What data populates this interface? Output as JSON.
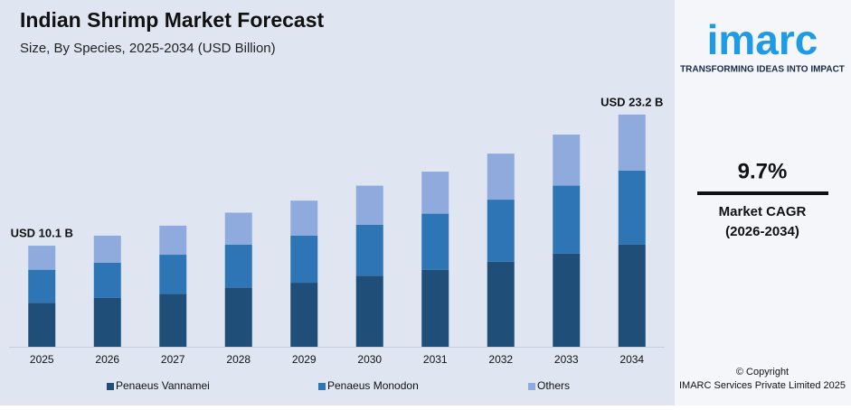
{
  "chart_data": {
    "type": "stacked-bar",
    "title": "Indian Shrimp Market Forecast",
    "subtitle": "Size, By Species, 2025-2034 (USD Billion)",
    "categories": [
      "2025",
      "2026",
      "2027",
      "2028",
      "2029",
      "2030",
      "2031",
      "2032",
      "2033",
      "2034"
    ],
    "series": [
      {
        "name": "Penaeus Vannamei",
        "color": "#1f4e79",
        "values": [
          4.4,
          4.9,
          5.3,
          5.9,
          6.4,
          7.1,
          7.7,
          8.5,
          9.3,
          10.2
        ]
      },
      {
        "name": "Penaeus Monodon",
        "color": "#2e75b6",
        "values": [
          3.3,
          3.5,
          3.9,
          4.3,
          4.7,
          5.1,
          5.6,
          6.2,
          6.8,
          7.4
        ]
      },
      {
        "name": "Others",
        "color": "#8faadc",
        "values": [
          2.4,
          2.7,
          2.9,
          3.2,
          3.5,
          3.9,
          4.2,
          4.6,
          5.1,
          5.6
        ]
      }
    ],
    "ylim": [
      0,
      24
    ],
    "annotations": [
      {
        "text": "USD 10.1 B",
        "category": 0
      },
      {
        "text": "USD 23.2 B",
        "category": 9
      }
    ]
  },
  "sidebar": {
    "logo": "imarc",
    "tagline": "TRANSFORMING IDEAS INTO IMPACT",
    "cagr": "9.7%",
    "cagr_label": "Market CAGR",
    "cagr_period": "(2026-2034)",
    "copyright": "© Copyright",
    "company": "IMARC Services Private Limited 2025"
  }
}
